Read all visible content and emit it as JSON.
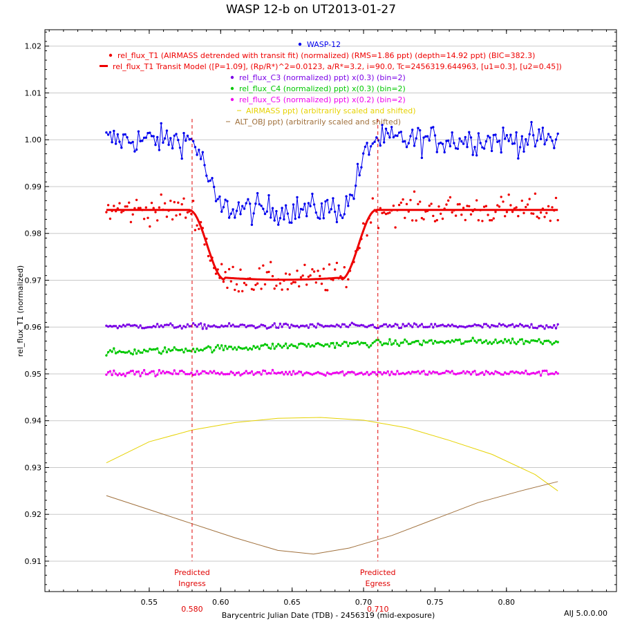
{
  "chart_data": {
    "type": "scatter",
    "title": "WASP 12-b on UT2013-01-27",
    "xlabel": "Barycentric Julian Date (TDB) - 2456319 (mid-exposure)",
    "ylabel": "rel_flux_T1 (normalized)",
    "xlim": [
      0.477,
      0.877
    ],
    "ylim": [
      0.9035,
      1.0235
    ],
    "x_ticks": [
      "0.55",
      "0.60",
      "0.65",
      "0.70",
      "0.75",
      "0.80"
    ],
    "y_ticks": [
      "1.02",
      "1.01",
      "1.00",
      "0.99",
      "0.98",
      "0.97",
      "0.96",
      "0.95",
      "0.94",
      "0.93",
      "0.92",
      "0.91"
    ],
    "grid": "horizontal",
    "footer": "AIJ 5.0.0.00",
    "markers": [
      {
        "x": 0.58,
        "value_label": "0.580",
        "label_line1": "Predicted",
        "label_line2": "Ingress"
      },
      {
        "x": 0.71,
        "value_label": "0.710",
        "label_line1": "Predicted",
        "label_line2": "Egress"
      }
    ],
    "x_range": [
      0.52,
      0.836
    ],
    "n_points": 240,
    "transit": {
      "ingress_start": 0.578,
      "ingress_end": 0.603,
      "egress_start": 0.684,
      "egress_end": 0.709
    },
    "series": [
      {
        "name": "WASP-12",
        "color": "#0000ee",
        "style": "line+points",
        "baseline": 1.0,
        "depth": 0.015,
        "scatter": 0.0022
      },
      {
        "name": "rel_flux_T1 (AIRMASS detrended with transit fit) (normalized) (RMS=1.86 ppt) (depth=14.92 ppt) (BIC=382.3)",
        "color": "#ee0000",
        "style": "points",
        "baseline": 0.985,
        "depth": 0.0149,
        "scatter": 0.0022
      },
      {
        "name": "rel_flux_T1 Transit Model ([P=1.09], (Rp/R*)^2=0.0123, a/R*=3.2, i=90.0, Tc=2456319.644963, [u1=0.3], [u2=0.45])",
        "color": "#ee0000",
        "style": "model",
        "baseline": 0.985,
        "depth": 0.0149
      },
      {
        "name": "rel_flux_C3 (normalized) ppt) x(0.3) (bin=2)",
        "color": "#7a00e6",
        "style": "line+points",
        "baseline": 0.9602,
        "scatter": 0.0004
      },
      {
        "name": "rel_flux_C4 (normalized) ppt) x(0.3) (bin=2)",
        "color": "#00c800",
        "style": "line+points",
        "baseline": 0.9545,
        "scatter": 0.0005
      },
      {
        "name": "rel_flux_C5 (normalized) ppt) x(0.2) (bin=2)",
        "color": "#ee00ee",
        "style": "line+points",
        "baseline": 0.9502,
        "scatter": 0.0004
      },
      {
        "name": "AIRMASS ppt) (arbitrarily scaled and shifted)",
        "color": "#e6d200",
        "style": "curve",
        "x": [
          0.52,
          0.55,
          0.58,
          0.61,
          0.64,
          0.67,
          0.7,
          0.73,
          0.76,
          0.79,
          0.82,
          0.836
        ],
        "y": [
          0.931,
          0.9355,
          0.938,
          0.9396,
          0.9405,
          0.9407,
          0.9401,
          0.9385,
          0.9358,
          0.9328,
          0.9285,
          0.925
        ]
      },
      {
        "name": "ALT_OBJ ppt) (arbitrarily scaled and shifted)",
        "color": "#a0703c",
        "style": "curve",
        "x": [
          0.52,
          0.55,
          0.58,
          0.61,
          0.64,
          0.665,
          0.69,
          0.72,
          0.75,
          0.78,
          0.81,
          0.836
        ],
        "y": [
          0.924,
          0.921,
          0.918,
          0.915,
          0.9123,
          0.9115,
          0.9128,
          0.9155,
          0.919,
          0.9225,
          0.925,
          0.927
        ]
      }
    ]
  }
}
